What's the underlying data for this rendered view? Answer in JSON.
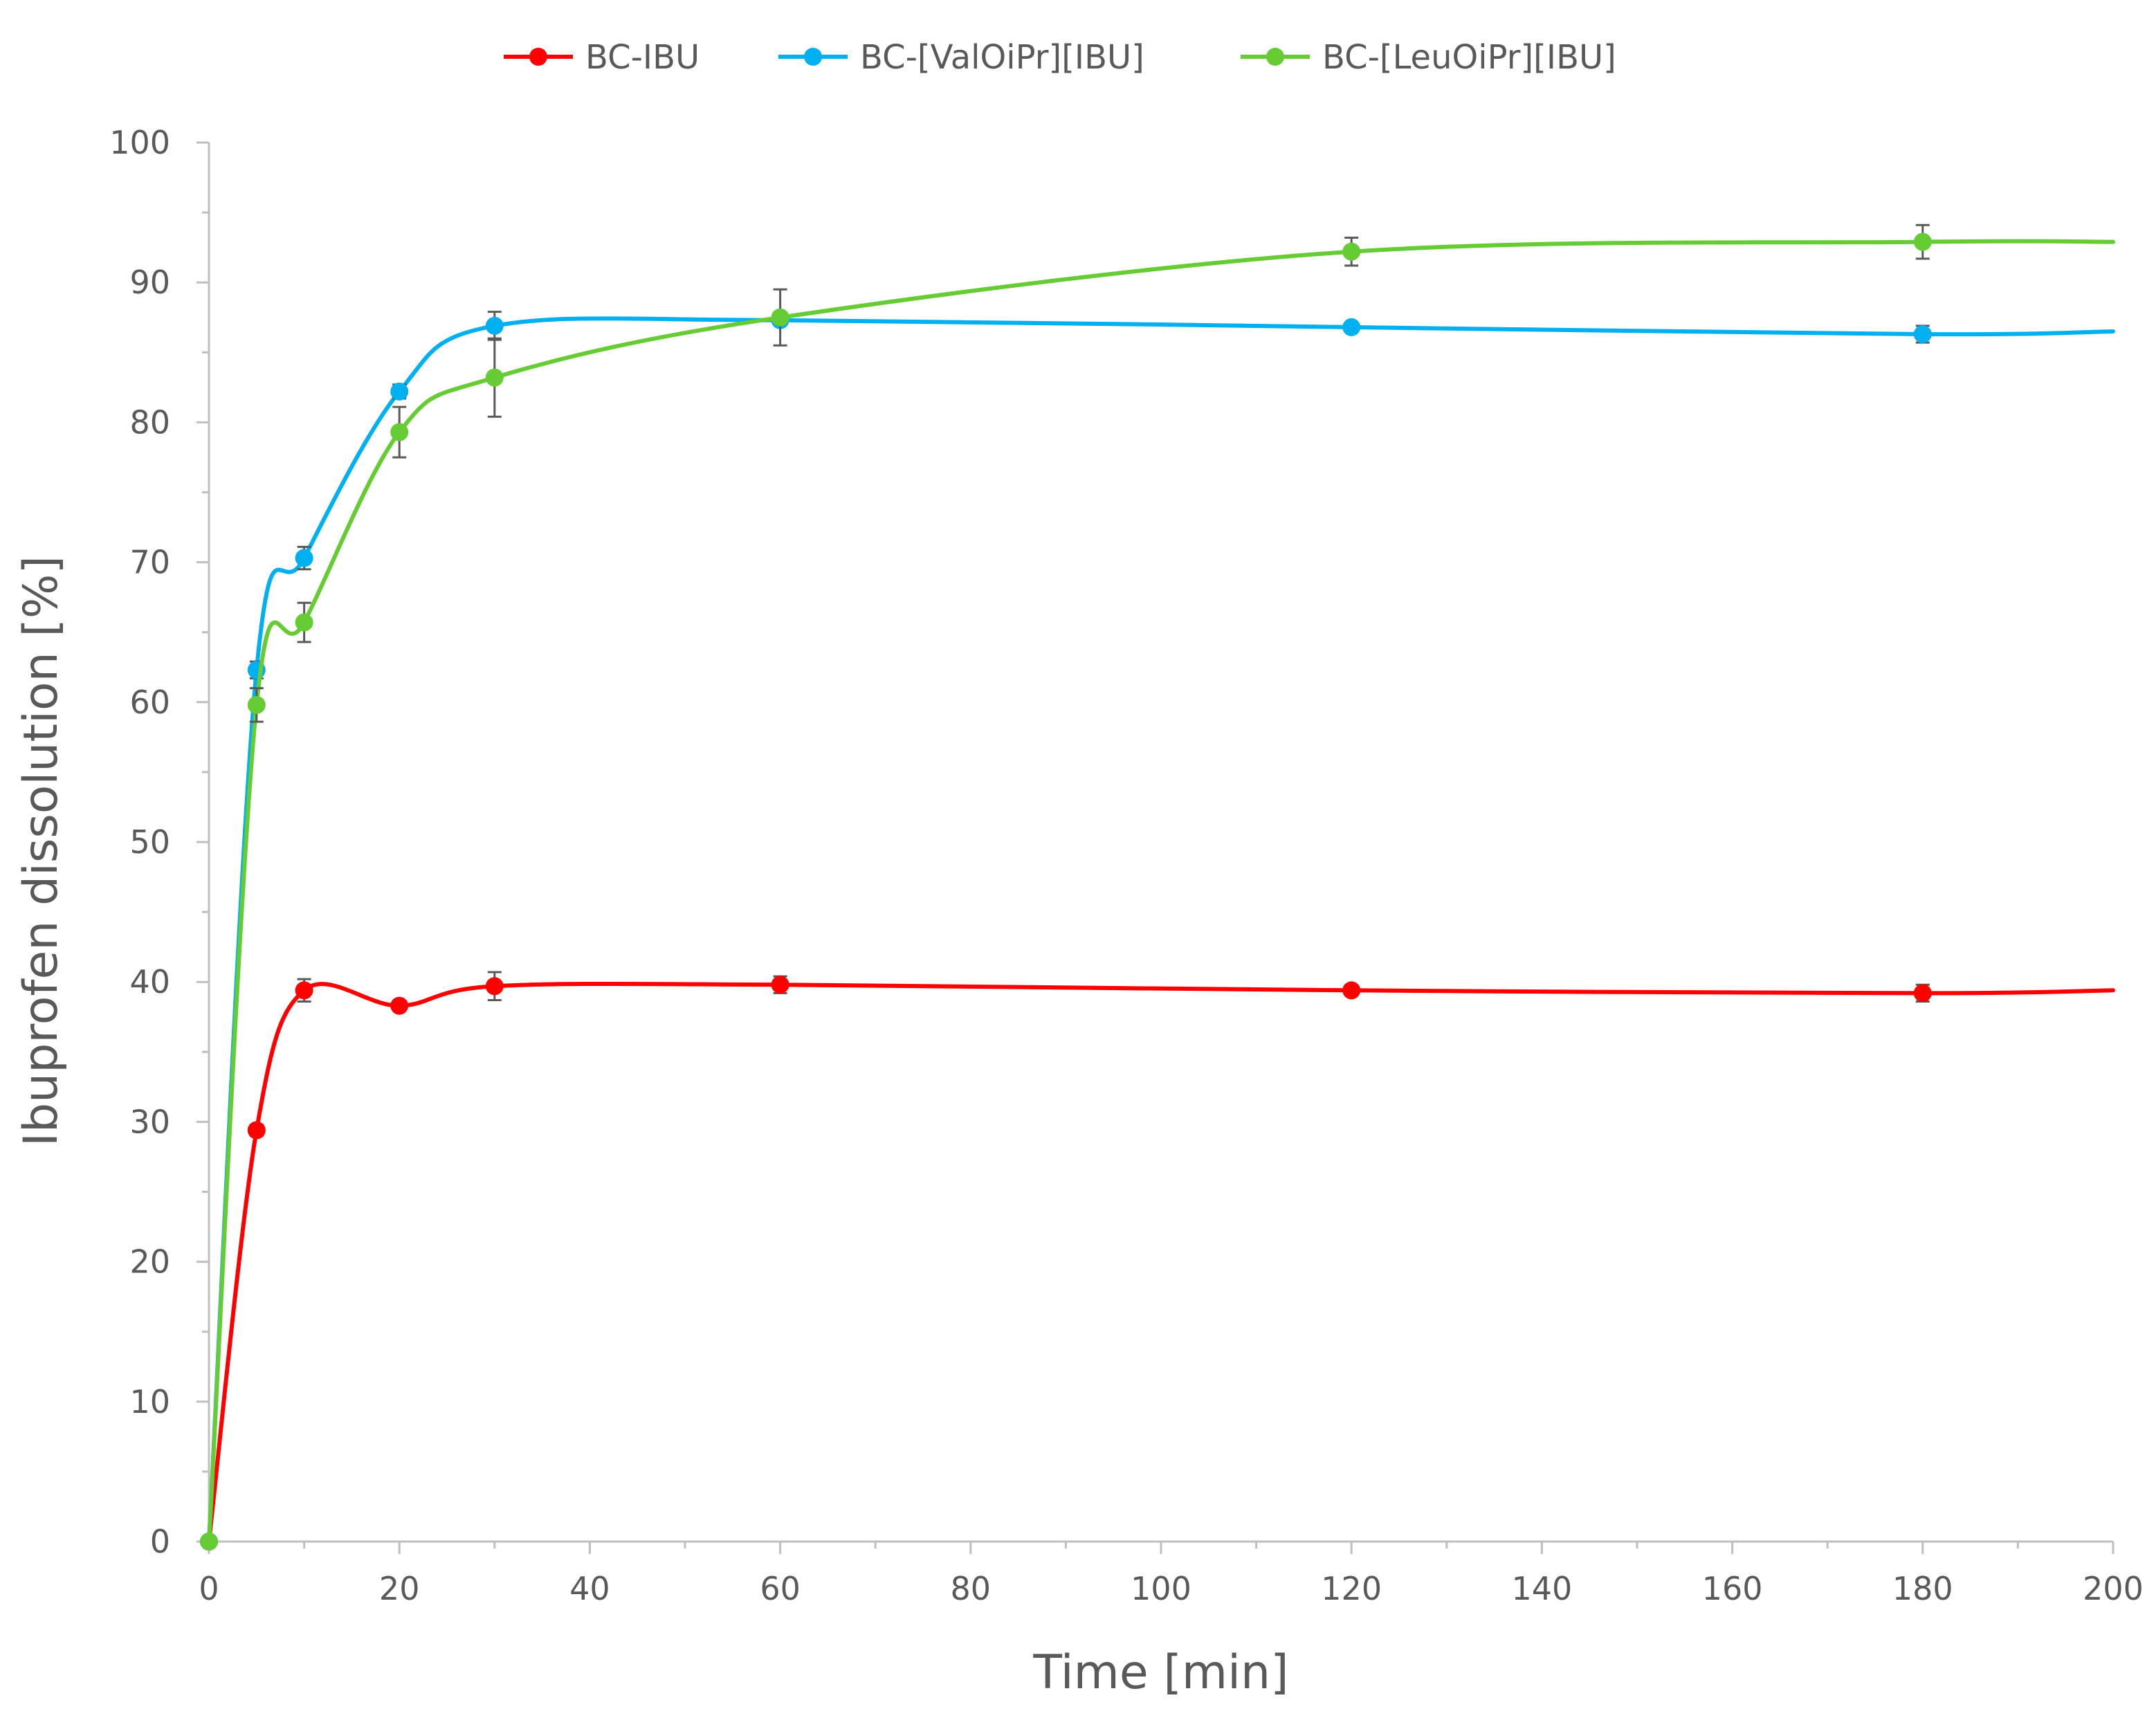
{
  "chart_data": {
    "type": "line",
    "xlabel": "Time [min]",
    "ylabel": "Ibuprofen dissolution [%]",
    "xlim": [
      0,
      200
    ],
    "ylim": [
      0,
      100
    ],
    "x_ticks": [
      0,
      20,
      40,
      60,
      80,
      100,
      120,
      140,
      160,
      180,
      200
    ],
    "y_ticks": [
      0,
      10,
      20,
      30,
      40,
      50,
      60,
      70,
      80,
      90,
      100
    ],
    "grid": false,
    "legend_position": "top",
    "line_style": "smoothed",
    "series": [
      {
        "name": "BC-IBU",
        "color": "#ff0000",
        "points": [
          {
            "x": 0,
            "y": 0,
            "err": 0
          },
          {
            "x": 5,
            "y": 29.4,
            "err": 0.4
          },
          {
            "x": 10,
            "y": 39.4,
            "err": 0.8
          },
          {
            "x": 20,
            "y": 38.3,
            "err": 0.3
          },
          {
            "x": 30,
            "y": 39.7,
            "err": 1.0
          },
          {
            "x": 60,
            "y": 39.8,
            "err": 0.6
          },
          {
            "x": 120,
            "y": 39.4,
            "err": 0.3
          },
          {
            "x": 180,
            "y": 39.2,
            "err": 0.6
          }
        ],
        "end": {
          "x": 200,
          "y": 39.4
        }
      },
      {
        "name": "BC-[ValOiPr][IBU]",
        "color": "#00b0f0",
        "points": [
          {
            "x": 0,
            "y": 0,
            "err": 0
          },
          {
            "x": 5,
            "y": 62.3,
            "err": 0.6
          },
          {
            "x": 10,
            "y": 70.3,
            "err": 0.8
          },
          {
            "x": 20,
            "y": 82.2,
            "err": 0.5
          },
          {
            "x": 30,
            "y": 86.9,
            "err": 1.0
          },
          {
            "x": 60,
            "y": 87.3,
            "err": 0.3
          },
          {
            "x": 120,
            "y": 86.8,
            "err": 0.3
          },
          {
            "x": 180,
            "y": 86.3,
            "err": 0.6
          }
        ],
        "end": {
          "x": 200,
          "y": 86.5
        }
      },
      {
        "name": "BC-[LeuOiPr][IBU]",
        "color": "#66cc33",
        "points": [
          {
            "x": 0,
            "y": 0,
            "err": 0
          },
          {
            "x": 5,
            "y": 59.8,
            "err": 1.2
          },
          {
            "x": 10,
            "y": 65.7,
            "err": 1.4
          },
          {
            "x": 20,
            "y": 79.3,
            "err": 1.8
          },
          {
            "x": 30,
            "y": 83.2,
            "err": 2.8
          },
          {
            "x": 60,
            "y": 87.5,
            "err": 2.0
          },
          {
            "x": 120,
            "y": 92.2,
            "err": 1.0
          },
          {
            "x": 180,
            "y": 92.9,
            "err": 1.2
          }
        ],
        "end": {
          "x": 200,
          "y": 92.9
        }
      }
    ]
  }
}
